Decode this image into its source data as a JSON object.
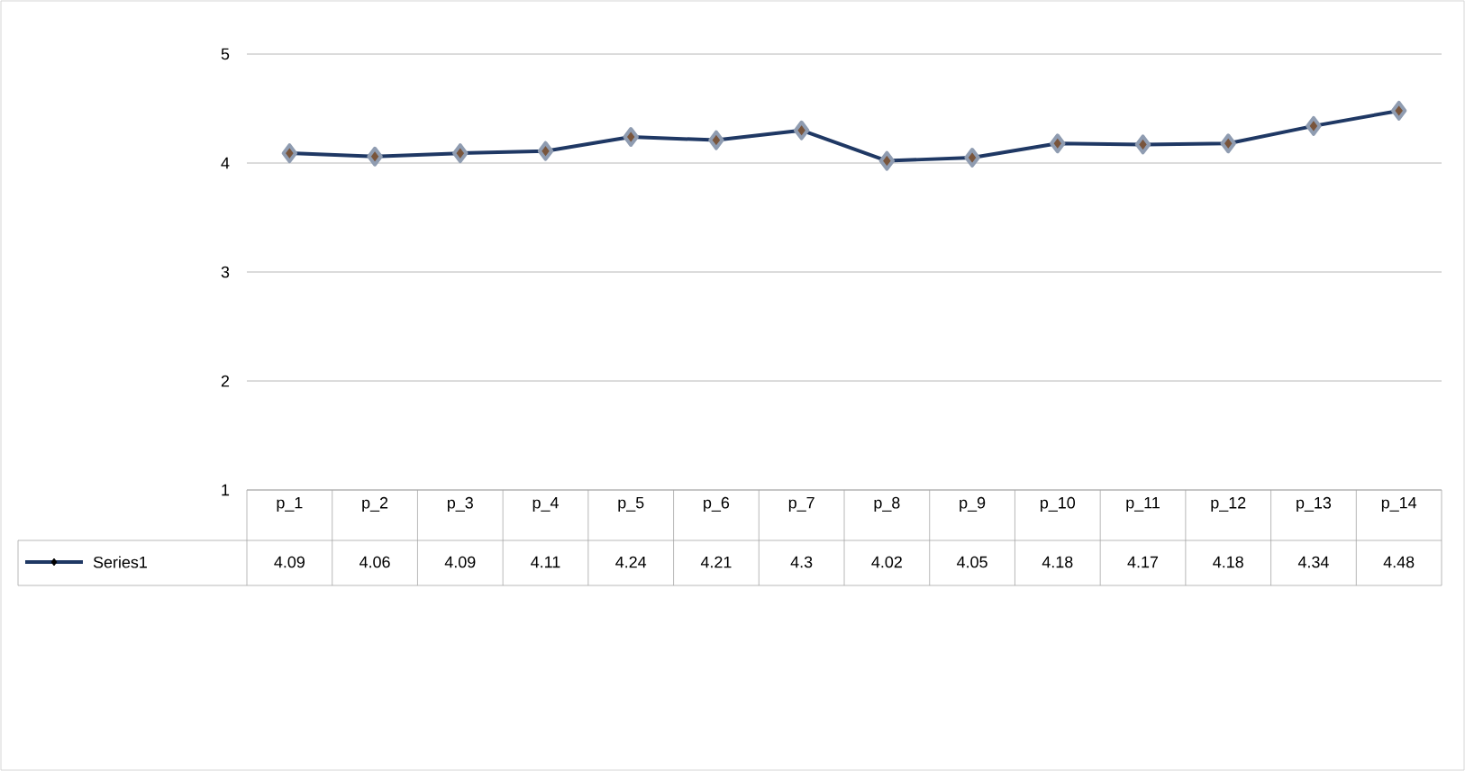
{
  "chart_data": {
    "type": "line",
    "categories": [
      "p_1",
      "p_2",
      "p_3",
      "p_4",
      "p_5",
      "p_6",
      "p_7",
      "p_8",
      "p_9",
      "p_10",
      "p_11",
      "p_12",
      "p_13",
      "p_14"
    ],
    "series": [
      {
        "name": "Series1",
        "color": "#1f3864",
        "values": [
          4.09,
          4.06,
          4.09,
          4.11,
          4.24,
          4.21,
          4.3,
          4.02,
          4.05,
          4.18,
          4.17,
          4.18,
          4.34,
          4.48
        ]
      }
    ],
    "ylim": [
      1,
      5
    ],
    "yticks": [
      1,
      2,
      3,
      4,
      5
    ],
    "grid": "y",
    "legend": "bottom",
    "marker": "diamond",
    "line_style": "solid",
    "data_labels": true
  }
}
